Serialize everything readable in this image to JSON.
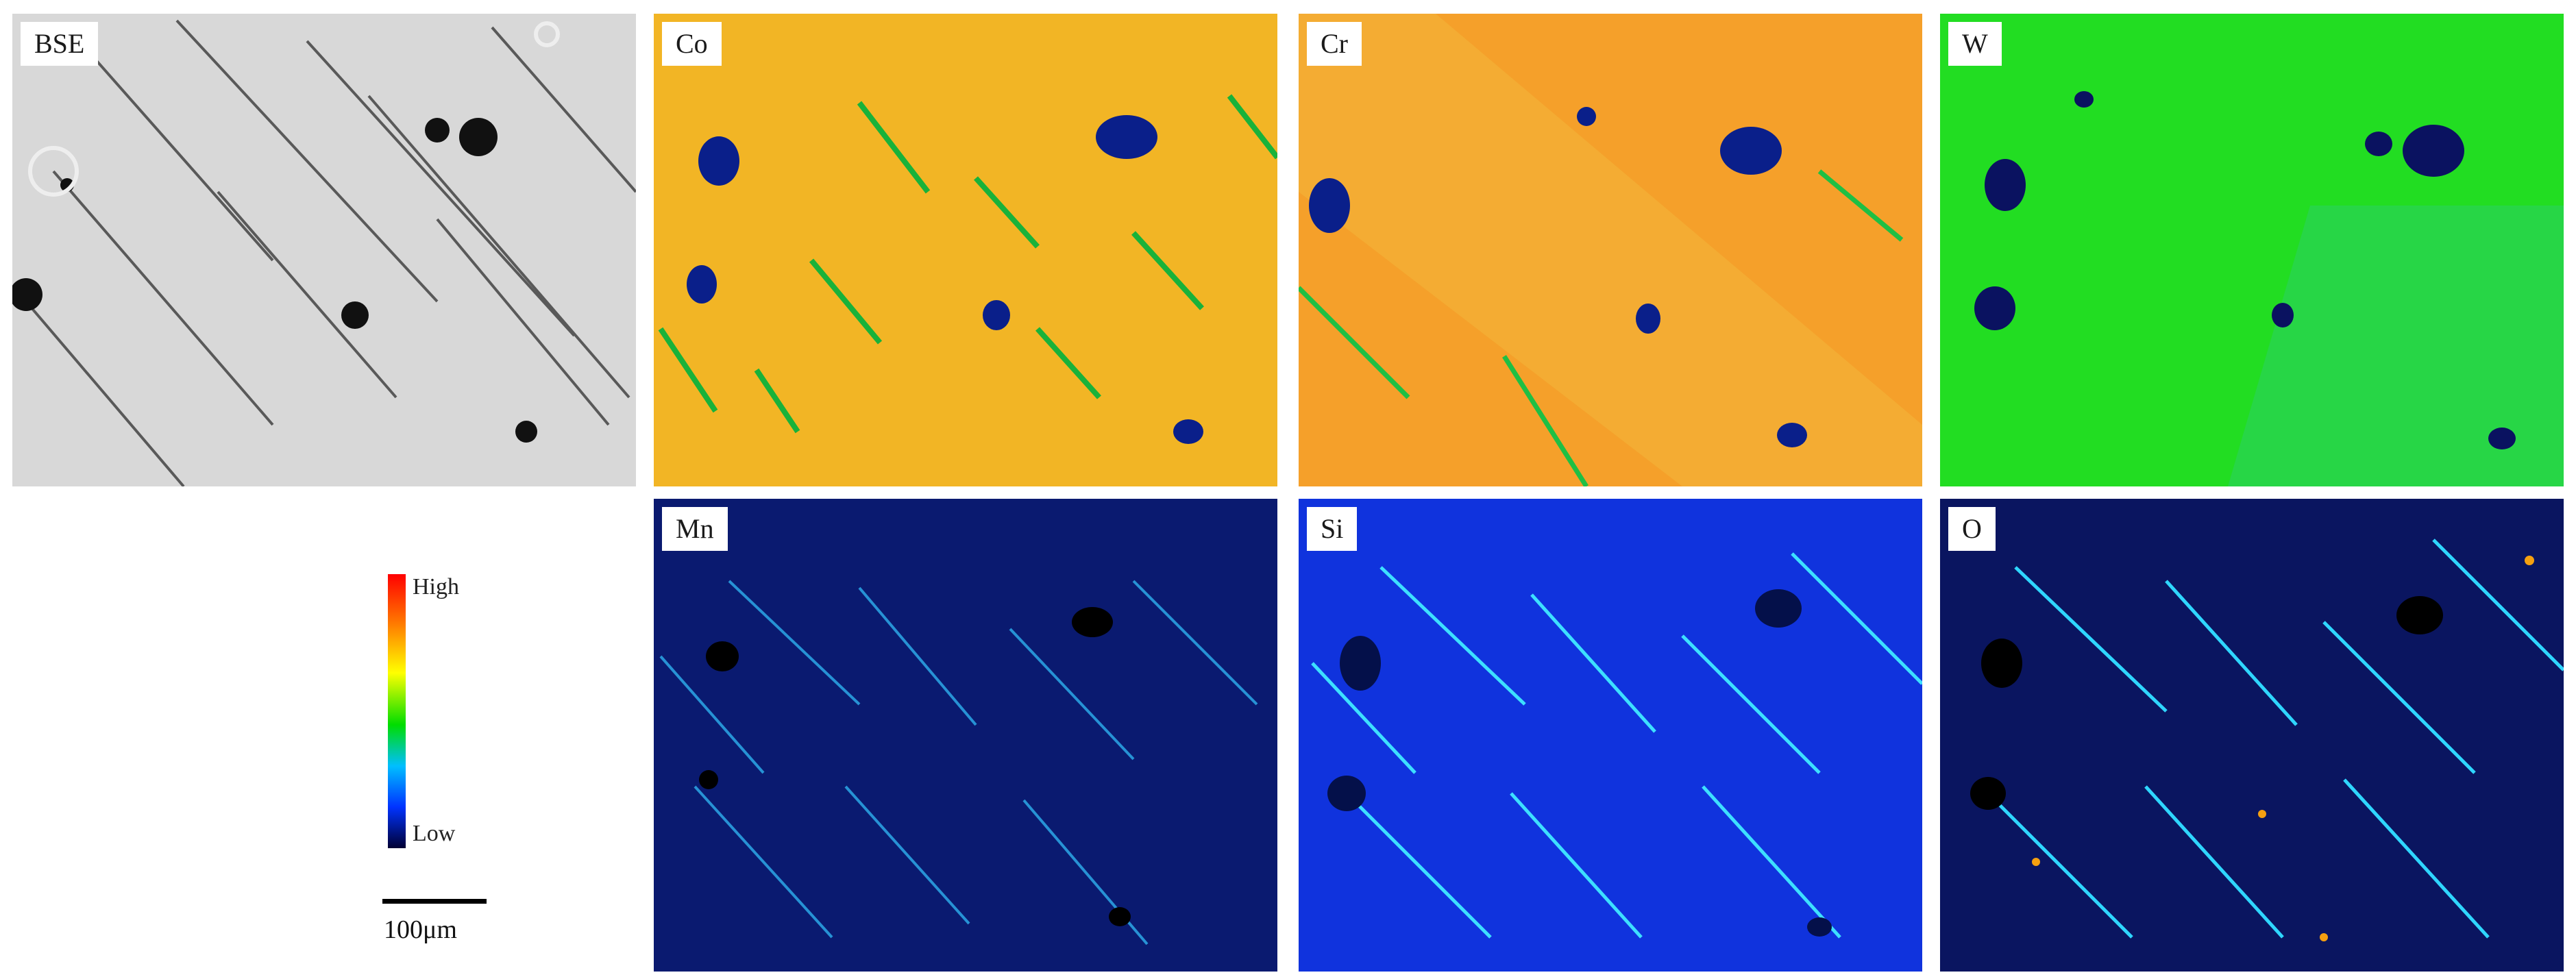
{
  "panels": [
    {
      "id": "bse",
      "label": "BSE"
    },
    {
      "id": "co",
      "label": "Co"
    },
    {
      "id": "cr",
      "label": "Cr"
    },
    {
      "id": "w",
      "label": "W"
    },
    {
      "id": "mn",
      "label": "Mn"
    },
    {
      "id": "si",
      "label": "Si"
    },
    {
      "id": "o",
      "label": "O"
    }
  ],
  "colorbar": {
    "high_label": "High",
    "low_label": "Low"
  },
  "scale": {
    "label": "100μm"
  },
  "colors": {
    "bse_bg": "#d9d9d9",
    "co_bg": "#f0b020",
    "cr_bg": "#f5a02a",
    "w_bg": "#22dd22",
    "mn_bg": "#0a1a70",
    "si_bg": "#1033dd",
    "o_bg": "#0a1560"
  }
}
